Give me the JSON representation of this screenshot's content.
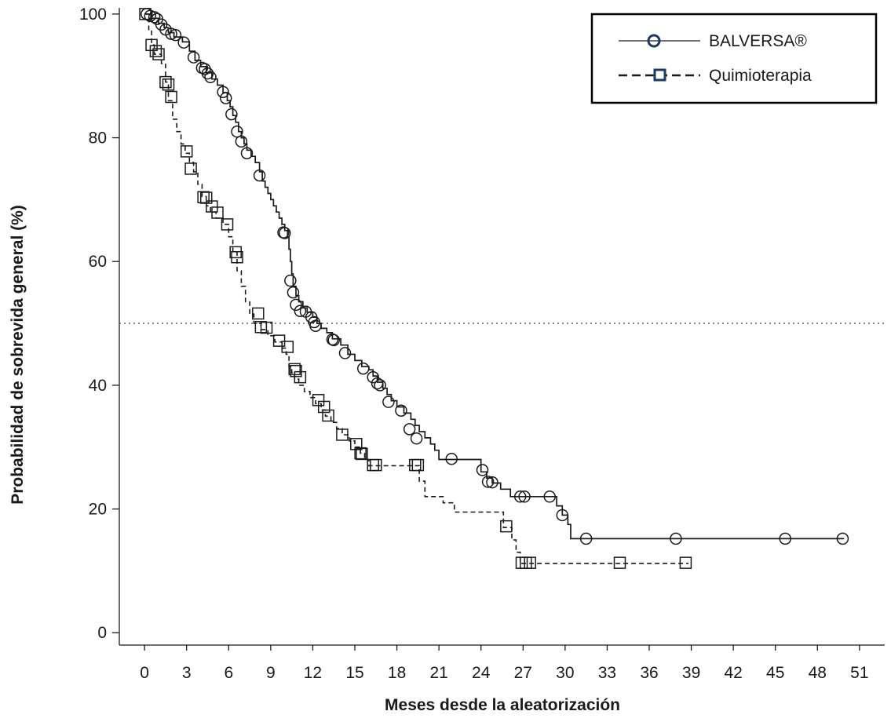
{
  "chart_data": {
    "type": "line",
    "subtype": "kaplan-meier",
    "title": "",
    "xlabel": "Meses desde la aleatorización",
    "ylabel": "Probabilidad  de sobrevida general (%)",
    "xlim": [
      -1.8,
      52.8
    ],
    "ylim": [
      -2,
      101
    ],
    "xticks": [
      "0",
      "3",
      "6",
      "9",
      "12",
      "15",
      "18",
      "21",
      "24",
      "27",
      "30",
      "33",
      "36",
      "39",
      "42",
      "45",
      "48",
      "51"
    ],
    "yticks": [
      "0",
      "20",
      "40",
      "60",
      "80",
      "100"
    ],
    "reference_line": {
      "y": 50,
      "style": "dotted"
    },
    "grid": false,
    "legend": {
      "placement": "top-right"
    },
    "series": [
      {
        "name": "BALVERSA®",
        "line_style": "solid",
        "marker": "circle",
        "color": "#1a1a1a",
        "legend_marker_color": "#1f3864",
        "steps": [
          [
            0,
            100
          ],
          [
            0.5,
            99.3
          ],
          [
            1.0,
            98.5
          ],
          [
            1.4,
            97.8
          ],
          [
            1.7,
            97.0
          ],
          [
            2.1,
            96.3
          ],
          [
            2.7,
            95.5
          ],
          [
            3.2,
            94.0
          ],
          [
            3.6,
            92.5
          ],
          [
            4.0,
            91.5
          ],
          [
            4.4,
            90.5
          ],
          [
            4.8,
            89.5
          ],
          [
            5.2,
            88.5
          ],
          [
            5.6,
            87.3
          ],
          [
            5.9,
            86.0
          ],
          [
            6.1,
            85.0
          ],
          [
            6.3,
            83.6
          ],
          [
            6.5,
            82.5
          ],
          [
            6.7,
            81.0
          ],
          [
            6.9,
            80.0
          ],
          [
            7.1,
            79.0
          ],
          [
            7.3,
            78.0
          ],
          [
            7.6,
            77.0
          ],
          [
            7.9,
            76.0
          ],
          [
            8.2,
            74.5
          ],
          [
            8.4,
            73.0
          ],
          [
            8.6,
            72.0
          ],
          [
            8.8,
            71.0
          ],
          [
            9.0,
            70.0
          ],
          [
            9.2,
            69.0
          ],
          [
            9.4,
            68.0
          ],
          [
            9.6,
            67.0
          ],
          [
            9.8,
            66.0
          ],
          [
            10.0,
            65.0
          ],
          [
            10.2,
            64.0
          ],
          [
            10.3,
            62.0
          ],
          [
            10.4,
            60.0
          ],
          [
            10.5,
            58.0
          ],
          [
            10.6,
            56.0
          ],
          [
            10.8,
            54.5
          ],
          [
            11.0,
            53.5
          ],
          [
            11.3,
            52.5
          ],
          [
            11.6,
            51.8
          ],
          [
            12.0,
            51.0
          ],
          [
            12.3,
            50.0
          ],
          [
            12.6,
            49.2
          ],
          [
            13.0,
            48.5
          ],
          [
            13.4,
            47.5
          ],
          [
            14.0,
            46.5
          ],
          [
            14.5,
            45.0
          ],
          [
            15.0,
            44.0
          ],
          [
            15.5,
            43.0
          ],
          [
            16.0,
            42.5
          ],
          [
            16.3,
            41.5
          ],
          [
            16.6,
            40.5
          ],
          [
            17.0,
            39.5
          ],
          [
            17.3,
            38.5
          ],
          [
            17.6,
            37.5
          ],
          [
            18.0,
            36.5
          ],
          [
            18.5,
            35.5
          ],
          [
            19.0,
            34.5
          ],
          [
            19.3,
            33.5
          ],
          [
            19.6,
            32.5
          ],
          [
            20.0,
            31.5
          ],
          [
            20.4,
            30.5
          ],
          [
            20.7,
            29.5
          ],
          [
            21.0,
            28.0
          ],
          [
            24.0,
            26.0
          ],
          [
            24.4,
            25.0
          ],
          [
            24.8,
            24.2
          ],
          [
            25.4,
            23.2
          ],
          [
            26.1,
            22.0
          ],
          [
            29.4,
            20.5
          ],
          [
            29.8,
            19.0
          ],
          [
            30.2,
            17.5
          ],
          [
            30.4,
            15.2
          ]
        ],
        "end_month": 49.9,
        "censor_marks": [
          [
            0.15,
            100
          ],
          [
            0.4,
            99.7
          ],
          [
            0.7,
            99.5
          ],
          [
            0.9,
            99.2
          ],
          [
            1.2,
            98.3
          ],
          [
            1.5,
            97.5
          ],
          [
            1.9,
            96.8
          ],
          [
            2.2,
            96.6
          ],
          [
            2.8,
            95.4
          ],
          [
            3.5,
            93.0
          ],
          [
            4.1,
            91.3
          ],
          [
            4.3,
            91.1
          ],
          [
            4.5,
            90.4
          ],
          [
            4.7,
            89.8
          ],
          [
            5.6,
            87.4
          ],
          [
            5.8,
            86.4
          ],
          [
            6.2,
            83.8
          ],
          [
            6.6,
            81.0
          ],
          [
            6.9,
            79.4
          ],
          [
            7.3,
            77.5
          ],
          [
            8.2,
            73.9
          ],
          [
            9.9,
            64.7
          ],
          [
            10.0,
            64.6
          ],
          [
            10.4,
            56.9
          ],
          [
            10.6,
            55.0
          ],
          [
            10.8,
            53.0
          ],
          [
            11.1,
            52.0
          ],
          [
            11.5,
            51.9
          ],
          [
            11.9,
            51.0
          ],
          [
            12.1,
            50.2
          ],
          [
            12.2,
            49.6
          ],
          [
            13.4,
            47.4
          ],
          [
            13.5,
            47.3
          ],
          [
            14.3,
            45.2
          ],
          [
            15.6,
            42.7
          ],
          [
            16.3,
            41.3
          ],
          [
            16.6,
            40.3
          ],
          [
            16.8,
            40.0
          ],
          [
            17.4,
            37.3
          ],
          [
            18.3,
            35.9
          ],
          [
            18.9,
            32.9
          ],
          [
            19.4,
            31.4
          ],
          [
            21.9,
            28.1
          ],
          [
            24.1,
            26.3
          ],
          [
            24.5,
            24.4
          ],
          [
            24.8,
            24.3
          ],
          [
            26.8,
            22.0
          ],
          [
            27.1,
            22.0
          ],
          [
            28.9,
            22.0
          ],
          [
            29.8,
            19.0
          ],
          [
            31.5,
            15.2
          ],
          [
            37.9,
            15.2
          ],
          [
            45.7,
            15.2
          ],
          [
            49.8,
            15.2
          ]
        ]
      },
      {
        "name": "Quimioterapia",
        "line_style": "dashed",
        "marker": "square",
        "color": "#1a1a1a",
        "legend_marker_color": "#1f3864",
        "steps": [
          [
            0,
            100
          ],
          [
            0.3,
            97.5
          ],
          [
            0.5,
            95.0
          ],
          [
            0.7,
            93.5
          ],
          [
            1.2,
            92.0
          ],
          [
            1.5,
            89.0
          ],
          [
            1.7,
            86.0
          ],
          [
            2.0,
            83.0
          ],
          [
            2.3,
            81.0
          ],
          [
            2.6,
            79.0
          ],
          [
            2.9,
            77.5
          ],
          [
            3.2,
            76.0
          ],
          [
            3.5,
            74.5
          ],
          [
            3.8,
            72.5
          ],
          [
            4.1,
            70.5
          ],
          [
            4.4,
            69.0
          ],
          [
            4.7,
            68.0
          ],
          [
            5.1,
            67.0
          ],
          [
            5.6,
            66.0
          ],
          [
            6.0,
            64.0
          ],
          [
            6.3,
            61.5
          ],
          [
            6.6,
            58.5
          ],
          [
            6.9,
            56.0
          ],
          [
            7.2,
            53.5
          ],
          [
            7.5,
            51.5
          ],
          [
            7.8,
            50.0
          ],
          [
            8.3,
            49.0
          ],
          [
            8.8,
            48.0
          ],
          [
            9.3,
            47.0
          ],
          [
            9.8,
            46.0
          ],
          [
            10.1,
            45.0
          ],
          [
            10.3,
            43.0
          ],
          [
            10.5,
            42.0
          ],
          [
            10.7,
            41.0
          ],
          [
            11.0,
            40.0
          ],
          [
            11.4,
            39.0
          ],
          [
            11.8,
            38.0
          ],
          [
            12.2,
            37.0
          ],
          [
            12.6,
            36.0
          ],
          [
            12.9,
            35.0
          ],
          [
            13.3,
            34.0
          ],
          [
            13.7,
            33.0
          ],
          [
            14.1,
            32.0
          ],
          [
            14.6,
            31.0
          ],
          [
            15.0,
            30.0
          ],
          [
            15.4,
            29.0
          ],
          [
            15.7,
            28.0
          ],
          [
            16.0,
            27.0
          ],
          [
            19.6,
            24.5
          ],
          [
            20.0,
            22.0
          ],
          [
            21.3,
            21.0
          ],
          [
            22.1,
            19.5
          ],
          [
            25.6,
            17.0
          ],
          [
            26.2,
            15.0
          ],
          [
            26.5,
            13.0
          ],
          [
            26.8,
            11.2
          ]
        ],
        "end_month": 38.8,
        "censor_marks": [
          [
            0.05,
            100
          ],
          [
            0.5,
            95.0
          ],
          [
            0.8,
            94.0
          ],
          [
            1.0,
            93.5
          ],
          [
            1.5,
            89.0
          ],
          [
            1.7,
            88.6
          ],
          [
            1.9,
            86.6
          ],
          [
            3.0,
            77.8
          ],
          [
            3.3,
            75.0
          ],
          [
            4.2,
            70.4
          ],
          [
            4.4,
            70.3
          ],
          [
            4.8,
            68.9
          ],
          [
            5.2,
            67.9
          ],
          [
            5.9,
            66.0
          ],
          [
            6.5,
            61.5
          ],
          [
            6.6,
            60.7
          ],
          [
            8.1,
            51.6
          ],
          [
            8.3,
            49.4
          ],
          [
            8.7,
            49.3
          ],
          [
            9.6,
            47.2
          ],
          [
            10.2,
            46.2
          ],
          [
            10.7,
            42.6
          ],
          [
            10.8,
            42.3
          ],
          [
            11.1,
            41.3
          ],
          [
            12.4,
            37.6
          ],
          [
            12.8,
            36.5
          ],
          [
            13.1,
            35.1
          ],
          [
            14.1,
            32.0
          ],
          [
            15.1,
            30.5
          ],
          [
            15.4,
            29.0
          ],
          [
            15.5,
            28.9
          ],
          [
            16.3,
            27.1
          ],
          [
            16.5,
            27.1
          ],
          [
            19.3,
            27.1
          ],
          [
            19.5,
            27.1
          ],
          [
            25.8,
            17.2
          ],
          [
            26.9,
            11.3
          ],
          [
            27.2,
            11.3
          ],
          [
            27.5,
            11.3
          ],
          [
            33.9,
            11.3
          ],
          [
            38.6,
            11.3
          ]
        ]
      }
    ]
  }
}
